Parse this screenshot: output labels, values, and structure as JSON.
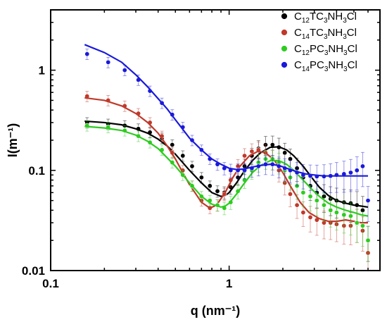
{
  "chart_data": {
    "type": "scatter",
    "xscale": "log",
    "yscale": "log",
    "xlim": [
      0.1,
      7
    ],
    "ylim": [
      0.01,
      4
    ],
    "xlabel": "q (nm⁻¹)",
    "ylabel": "I(m⁻¹)",
    "x_ticks": [
      {
        "value": 0.1,
        "label": "0.1"
      },
      {
        "value": 1,
        "label": "1"
      }
    ],
    "y_ticks": [
      {
        "value": 0.01,
        "label": "0.01"
      },
      {
        "value": 0.1,
        "label": "0.1"
      },
      {
        "value": 1,
        "label": "1"
      }
    ],
    "legend_position": "top-right",
    "series": [
      {
        "name": "C12TC3NH3Cl",
        "label_parts": [
          [
            "C",
            ""
          ],
          [
            "12",
            "sub"
          ],
          [
            "TC",
            ""
          ],
          [
            "3",
            "sub"
          ],
          [
            "NH",
            ""
          ],
          [
            "3",
            "sub"
          ],
          [
            "Cl",
            ""
          ]
        ],
        "color": "#000000",
        "x": [
          0.16,
          0.21,
          0.26,
          0.31,
          0.36,
          0.42,
          0.48,
          0.55,
          0.62,
          0.7,
          0.78,
          0.86,
          0.94,
          1.02,
          1.12,
          1.22,
          1.34,
          1.46,
          1.6,
          1.75,
          1.9,
          2.05,
          2.2,
          2.4,
          2.6,
          2.85,
          3.1,
          3.4,
          3.7,
          4.0,
          4.4,
          4.8,
          5.2,
          5.6,
          6.0
        ],
        "y": [
          0.3,
          0.29,
          0.28,
          0.26,
          0.24,
          0.21,
          0.18,
          0.14,
          0.11,
          0.085,
          0.07,
          0.062,
          0.06,
          0.068,
          0.085,
          0.11,
          0.14,
          0.165,
          0.18,
          0.18,
          0.17,
          0.15,
          0.13,
          0.105,
          0.085,
          0.07,
          0.06,
          0.055,
          0.052,
          0.05,
          0.048,
          0.047,
          0.045,
          0.04,
          0.02
        ],
        "fit_x": [
          0.155,
          0.2,
          0.25,
          0.3,
          0.35,
          0.4,
          0.45,
          0.5,
          0.6,
          0.7,
          0.8,
          0.9,
          0.95,
          1.0,
          1.1,
          1.2,
          1.35,
          1.5,
          1.7,
          1.9,
          2.1,
          2.3,
          2.6,
          2.9,
          3.2,
          3.6,
          4.0,
          4.5,
          5.0,
          5.5,
          6.0
        ],
        "fit_y": [
          0.31,
          0.3,
          0.285,
          0.26,
          0.235,
          0.205,
          0.175,
          0.145,
          0.1,
          0.075,
          0.06,
          0.055,
          0.056,
          0.06,
          0.075,
          0.095,
          0.125,
          0.15,
          0.17,
          0.172,
          0.16,
          0.14,
          0.11,
          0.085,
          0.068,
          0.056,
          0.05,
          0.047,
          0.045,
          0.044,
          0.043
        ]
      },
      {
        "name": "C14TC3NH3Cl",
        "label_parts": [
          [
            "C",
            ""
          ],
          [
            "14",
            "sub"
          ],
          [
            "TC",
            ""
          ],
          [
            "3",
            "sub"
          ],
          [
            "NH",
            ""
          ],
          [
            "3",
            "sub"
          ],
          [
            "Cl",
            ""
          ]
        ],
        "color": "#c0392b",
        "x": [
          0.16,
          0.21,
          0.26,
          0.31,
          0.36,
          0.42,
          0.48,
          0.55,
          0.62,
          0.7,
          0.78,
          0.86,
          0.94,
          1.02,
          1.12,
          1.22,
          1.34,
          1.46,
          1.6,
          1.75,
          1.9,
          2.05,
          2.2,
          2.4,
          2.6,
          2.85,
          3.1,
          3.4,
          3.7,
          4.0,
          4.4,
          4.8,
          5.2,
          5.6,
          6.0
        ],
        "y": [
          0.55,
          0.5,
          0.44,
          0.37,
          0.3,
          0.22,
          0.15,
          0.1,
          0.07,
          0.05,
          0.042,
          0.045,
          0.058,
          0.08,
          0.11,
          0.14,
          0.155,
          0.16,
          0.15,
          0.13,
          0.1,
          0.075,
          0.058,
          0.045,
          0.038,
          0.034,
          0.032,
          0.03,
          0.03,
          0.029,
          0.028,
          0.028,
          0.03,
          0.025,
          0.015
        ],
        "fit_x": [
          0.155,
          0.2,
          0.25,
          0.3,
          0.35,
          0.4,
          0.45,
          0.5,
          0.55,
          0.6,
          0.7,
          0.78,
          0.85,
          0.95,
          1.05,
          1.15,
          1.3,
          1.45,
          1.6,
          1.8,
          2.0,
          2.2,
          2.5,
          2.8,
          3.2,
          3.6,
          4.0,
          4.5,
          5.0,
          5.5,
          6.0
        ],
        "fit_y": [
          0.53,
          0.5,
          0.44,
          0.37,
          0.3,
          0.235,
          0.175,
          0.13,
          0.095,
          0.072,
          0.048,
          0.042,
          0.045,
          0.06,
          0.085,
          0.11,
          0.14,
          0.155,
          0.15,
          0.125,
          0.095,
          0.07,
          0.048,
          0.038,
          0.033,
          0.031,
          0.031,
          0.032,
          0.031,
          0.03,
          0.03
        ]
      },
      {
        "name": "C12PC3NH3Cl",
        "label_parts": [
          [
            "C",
            ""
          ],
          [
            "12",
            "sub"
          ],
          [
            "PC",
            ""
          ],
          [
            "3",
            "sub"
          ],
          [
            "NH",
            ""
          ],
          [
            "3",
            "sub"
          ],
          [
            "Cl",
            ""
          ]
        ],
        "color": "#2ecc20",
        "x": [
          0.16,
          0.21,
          0.26,
          0.31,
          0.36,
          0.42,
          0.48,
          0.55,
          0.62,
          0.7,
          0.78,
          0.86,
          0.94,
          1.02,
          1.12,
          1.22,
          1.34,
          1.46,
          1.6,
          1.75,
          1.9,
          2.05,
          2.2,
          2.4,
          2.6,
          2.85,
          3.1,
          3.4,
          3.7,
          4.0,
          4.4,
          4.8,
          5.2,
          5.6,
          6.0
        ],
        "y": [
          0.28,
          0.27,
          0.25,
          0.22,
          0.19,
          0.16,
          0.12,
          0.09,
          0.07,
          0.055,
          0.05,
          0.045,
          0.042,
          0.048,
          0.062,
          0.08,
          0.1,
          0.12,
          0.13,
          0.13,
          0.12,
          0.1,
          0.085,
          0.07,
          0.06,
          0.055,
          0.05,
          0.045,
          0.04,
          0.038,
          0.036,
          0.035,
          0.03,
          0.028,
          0.02
        ],
        "fit_x": [
          0.155,
          0.2,
          0.25,
          0.3,
          0.35,
          0.4,
          0.5,
          0.6,
          0.7,
          0.8,
          0.9,
          0.95,
          1.0,
          1.1,
          1.2,
          1.35,
          1.5,
          1.7,
          1.9,
          2.1,
          2.3,
          2.6,
          2.9,
          3.2,
          3.6,
          4.0,
          4.5,
          5.0,
          5.5,
          6.0
        ],
        "fit_y": [
          0.275,
          0.265,
          0.25,
          0.225,
          0.195,
          0.165,
          0.11,
          0.075,
          0.055,
          0.046,
          0.043,
          0.044,
          0.047,
          0.058,
          0.072,
          0.095,
          0.112,
          0.125,
          0.125,
          0.115,
          0.1,
          0.08,
          0.065,
          0.055,
          0.047,
          0.043,
          0.04,
          0.038,
          0.036,
          0.035
        ]
      },
      {
        "name": "C14PC3NH3Cl",
        "label_parts": [
          [
            "C",
            ""
          ],
          [
            "14",
            "sub"
          ],
          [
            "PC",
            ""
          ],
          [
            "3",
            "sub"
          ],
          [
            "NH",
            ""
          ],
          [
            "3",
            "sub"
          ],
          [
            "Cl",
            ""
          ]
        ],
        "color": "#1a1adb",
        "x": [
          0.16,
          0.21,
          0.26,
          0.31,
          0.36,
          0.42,
          0.48,
          0.55,
          0.62,
          0.7,
          0.78,
          0.86,
          0.94,
          1.02,
          1.12,
          1.22,
          1.34,
          1.46,
          1.6,
          1.75,
          1.9,
          2.05,
          2.2,
          2.4,
          2.6,
          2.85,
          3.1,
          3.4,
          3.7,
          4.0,
          4.4,
          4.8,
          5.2,
          5.6,
          6.0
        ],
        "y": [
          1.45,
          1.2,
          1.0,
          0.8,
          0.62,
          0.47,
          0.36,
          0.27,
          0.2,
          0.16,
          0.13,
          0.115,
          0.105,
          0.1,
          0.1,
          0.1,
          0.105,
          0.11,
          0.115,
          0.115,
          0.11,
          0.105,
          0.1,
          0.095,
          0.09,
          0.088,
          0.087,
          0.087,
          0.088,
          0.09,
          0.092,
          0.095,
          0.1,
          0.11,
          0.05
        ],
        "fit_x": [
          0.155,
          0.2,
          0.25,
          0.3,
          0.35,
          0.4,
          0.45,
          0.5,
          0.6,
          0.7,
          0.8,
          0.9,
          1.0,
          1.1,
          1.2,
          1.35,
          1.5,
          1.7,
          1.9,
          2.1,
          2.4,
          2.7,
          3.0,
          3.4,
          3.8,
          4.2,
          4.7,
          5.2,
          5.7,
          6.0
        ],
        "fit_y": [
          1.8,
          1.5,
          1.2,
          0.9,
          0.68,
          0.52,
          0.41,
          0.32,
          0.21,
          0.16,
          0.13,
          0.115,
          0.105,
          0.102,
          0.103,
          0.108,
          0.112,
          0.115,
          0.112,
          0.105,
          0.097,
          0.092,
          0.09,
          0.088,
          0.088,
          0.088,
          0.088,
          0.088,
          0.088,
          0.088
        ]
      }
    ]
  }
}
